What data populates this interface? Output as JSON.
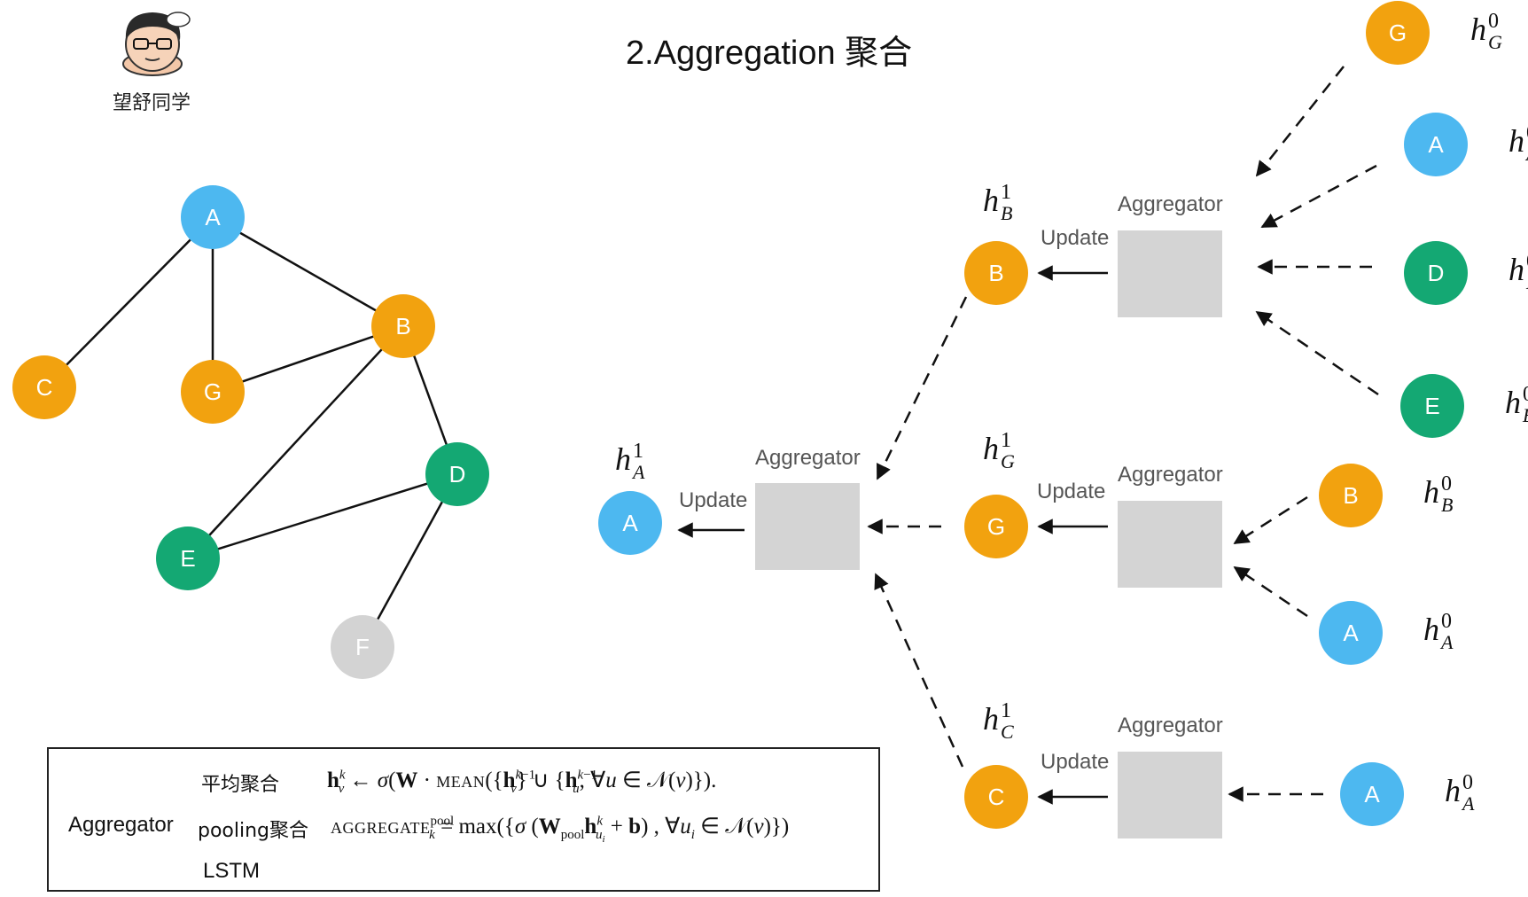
{
  "title": "2.Aggregation  聚合",
  "avatar_caption": "望舒同学",
  "graph": {
    "nodes": [
      {
        "id": "A",
        "color": "#4db8f0"
      },
      {
        "id": "B",
        "color": "#f2a20f"
      },
      {
        "id": "C",
        "color": "#f2a20f"
      },
      {
        "id": "G",
        "color": "#f2a20f"
      },
      {
        "id": "D",
        "color": "#14a873"
      },
      {
        "id": "E",
        "color": "#14a873"
      },
      {
        "id": "F",
        "color": "#d3d3d3"
      }
    ],
    "edges": [
      [
        "A",
        "C"
      ],
      [
        "A",
        "G"
      ],
      [
        "A",
        "B"
      ],
      [
        "B",
        "G"
      ],
      [
        "B",
        "E"
      ],
      [
        "B",
        "D"
      ],
      [
        "D",
        "E"
      ],
      [
        "D",
        "F"
      ]
    ]
  },
  "tree": {
    "aggregator_label": "Aggregator",
    "update_label": "Update",
    "root": {
      "node": "A",
      "h_sup": "1",
      "h_sub": "A"
    },
    "level1": [
      {
        "node": "B",
        "h_sup": "1",
        "h_sub": "B"
      },
      {
        "node": "G",
        "h_sup": "1",
        "h_sub": "G"
      },
      {
        "node": "C",
        "h_sup": "1",
        "h_sub": "C"
      }
    ],
    "level2": [
      {
        "node": "G",
        "h_sup": "0",
        "h_sub": "G"
      },
      {
        "node": "A",
        "h_sup": "0",
        "h_sub": "A"
      },
      {
        "node": "D",
        "h_sup": "0",
        "h_sub": "D"
      },
      {
        "node": "E",
        "h_sup": "0",
        "h_sub": "E"
      },
      {
        "node": "B",
        "h_sup": "0",
        "h_sub": "B"
      },
      {
        "node": "A",
        "h_sup": "0",
        "h_sub": "A"
      },
      {
        "node": "A",
        "h_sup": "0",
        "h_sub": "A"
      }
    ]
  },
  "formula_box": {
    "group_label": "Aggregator",
    "mean_label": "平均聚合",
    "pooling_label": "pooling聚合",
    "lstm_label": "LSTM"
  }
}
